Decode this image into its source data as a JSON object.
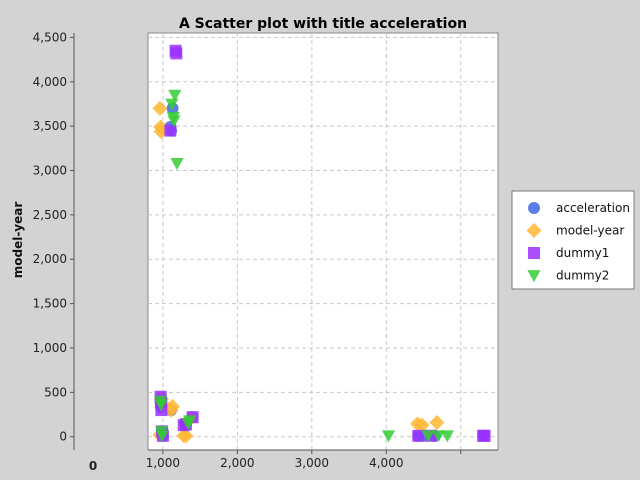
{
  "chart_data": {
    "type": "scatter",
    "title": "A Scatter plot with title acceleration",
    "xlabel": "",
    "ylabel": "model-year",
    "xlim": [
      800,
      5500
    ],
    "ylim": [
      -150,
      4550
    ],
    "x_ticks": [
      1000,
      2000,
      3000,
      4000
    ],
    "x_tick_labels": [
      "1,000",
      "2,000",
      "3,000",
      "4,000"
    ],
    "x_extra_label": "0",
    "y_ticks": [
      0,
      500,
      1000,
      1500,
      2000,
      2500,
      3000,
      3500,
      4000,
      4500
    ],
    "y_tick_labels": [
      "0",
      "500",
      "1,000",
      "1,500",
      "2,000",
      "2,500",
      "3,000",
      "3,500",
      "4,000",
      "4,500"
    ],
    "grid": true,
    "legend_position": "right",
    "series": [
      {
        "name": "acceleration",
        "marker": "circle",
        "color": "#4169e1",
        "points": [
          [
            1130,
            3700
          ],
          [
            1100,
            3490
          ],
          [
            1110,
            3450
          ],
          [
            980,
            430
          ],
          [
            970,
            390
          ],
          [
            975,
            330
          ],
          [
            985,
            60
          ],
          [
            990,
            20
          ],
          [
            1000,
            10
          ],
          [
            1110,
            300
          ],
          [
            1300,
            150
          ],
          [
            1390,
            220
          ],
          [
            4430,
            10
          ],
          [
            4650,
            10
          ],
          [
            5310,
            10
          ],
          [
            4500,
            15
          ]
        ]
      },
      {
        "name": "model-year",
        "marker": "diamond",
        "color": "#ffb732",
        "points": [
          [
            960,
            3700
          ],
          [
            970,
            3490
          ],
          [
            975,
            3440
          ],
          [
            980,
            420
          ],
          [
            1000,
            370
          ],
          [
            1130,
            340
          ],
          [
            1110,
            300
          ],
          [
            1280,
            10
          ],
          [
            1310,
            10
          ],
          [
            4420,
            145
          ],
          [
            4480,
            130
          ],
          [
            4680,
            160
          ],
          [
            1380,
            210
          ],
          [
            960,
            20
          ]
        ]
      },
      {
        "name": "dummy1",
        "marker": "square",
        "color": "#9b30ff",
        "points": [
          [
            1170,
            4350
          ],
          [
            1180,
            4320
          ],
          [
            1100,
            3450
          ],
          [
            970,
            450
          ],
          [
            975,
            390
          ],
          [
            980,
            300
          ],
          [
            990,
            60
          ],
          [
            1000,
            10
          ],
          [
            1280,
            130
          ],
          [
            1310,
            140
          ],
          [
            1400,
            220
          ],
          [
            4430,
            10
          ],
          [
            4600,
            10
          ],
          [
            5300,
            10
          ],
          [
            5320,
            10
          ]
        ]
      },
      {
        "name": "dummy2",
        "marker": "triangle-down",
        "color": "#33cc33",
        "points": [
          [
            1160,
            3850
          ],
          [
            1120,
            3750
          ],
          [
            1140,
            3600
          ],
          [
            1150,
            3560
          ],
          [
            1190,
            3080
          ],
          [
            970,
            400
          ],
          [
            975,
            360
          ],
          [
            980,
            60
          ],
          [
            990,
            10
          ],
          [
            1360,
            180
          ],
          [
            1340,
            150
          ],
          [
            4030,
            10
          ],
          [
            4560,
            10
          ],
          [
            4700,
            10
          ],
          [
            4820,
            10
          ]
        ]
      }
    ]
  }
}
